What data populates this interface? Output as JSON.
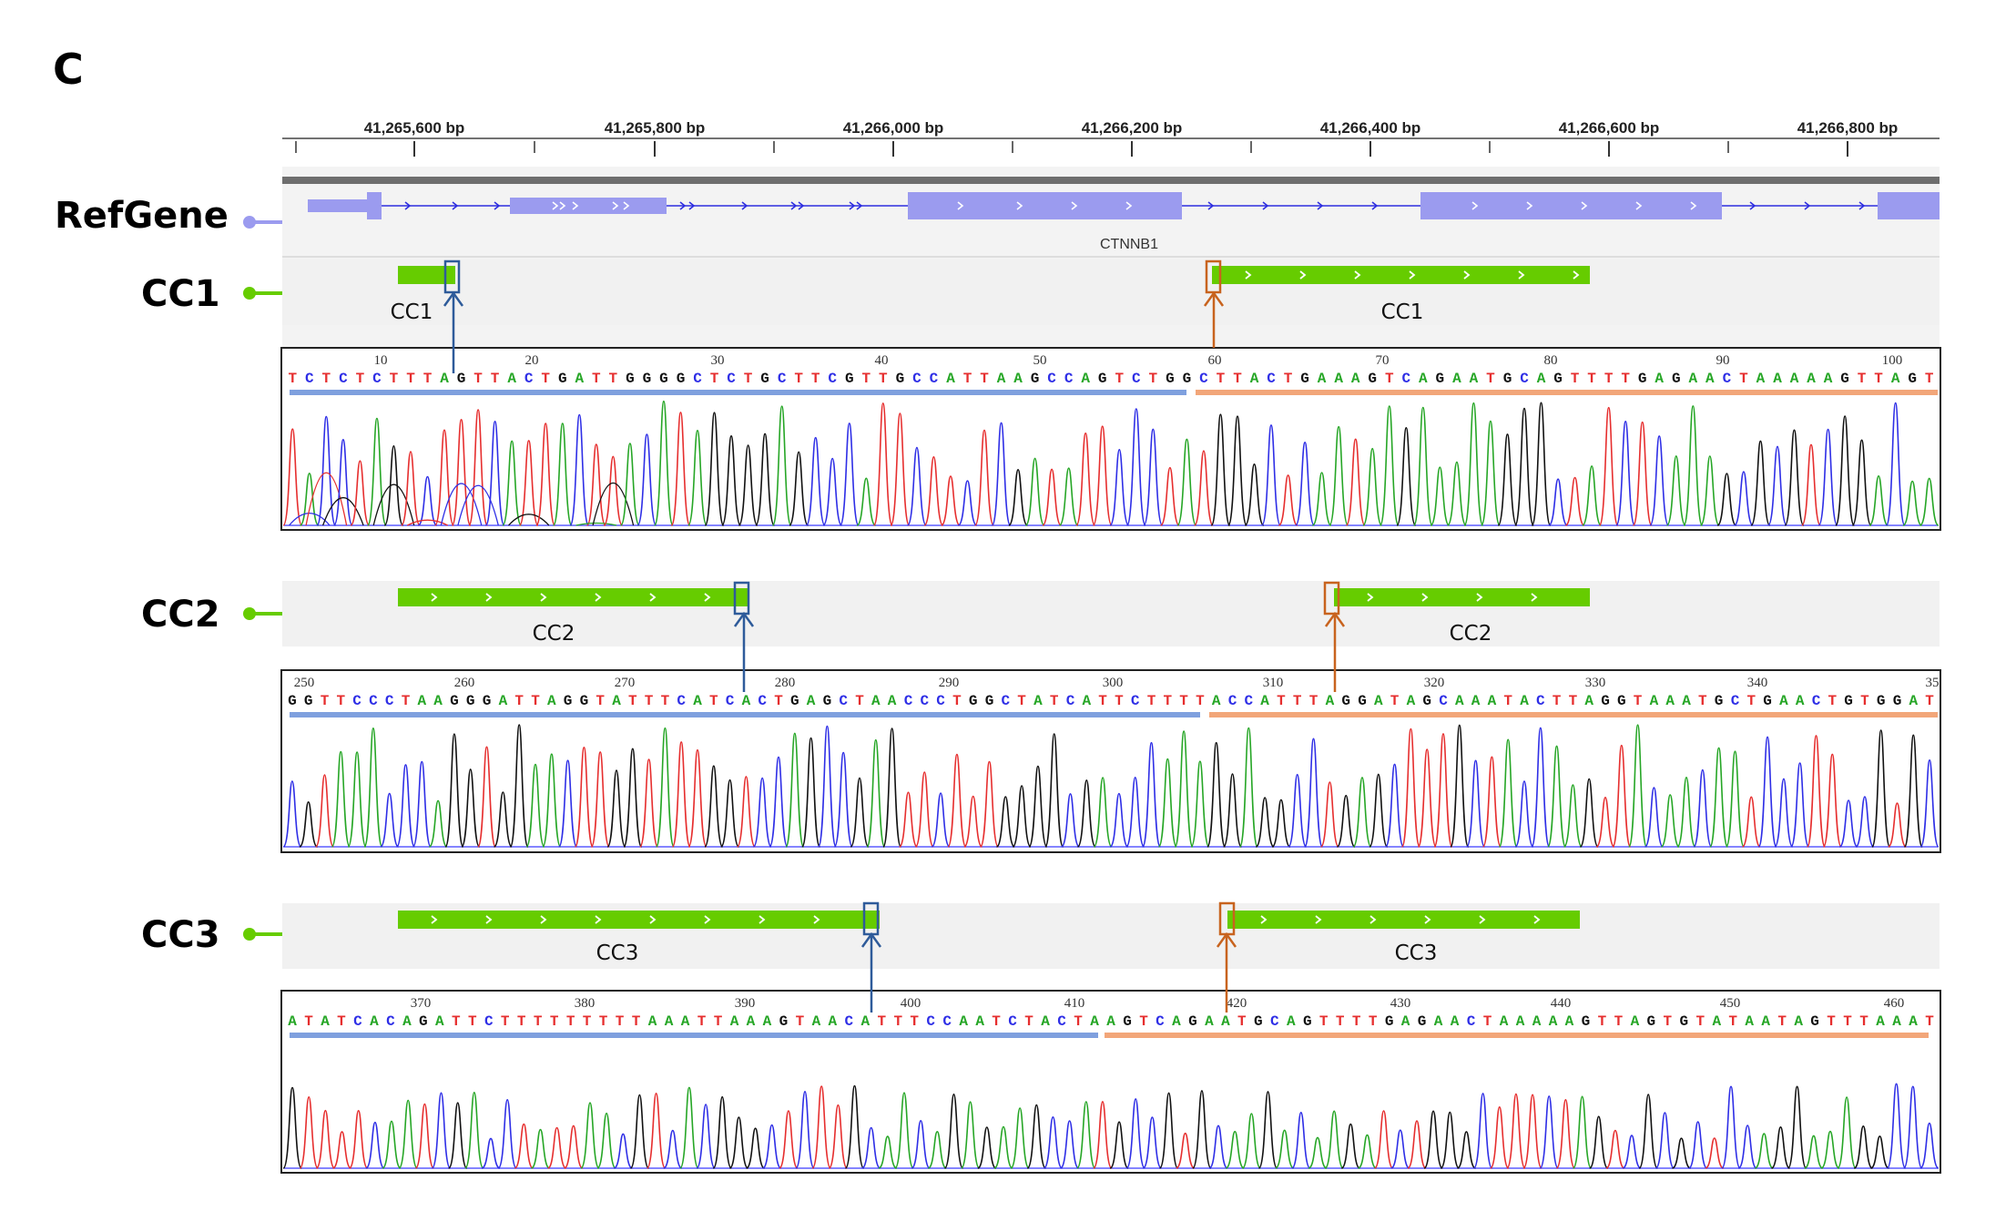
{
  "panel_letter": "C",
  "colors": {
    "refgene": "#9b9bef",
    "refgene_line": "#2e2ee0",
    "feature": "#66cc00",
    "blue_marker": "#2e5b9a",
    "orange_marker": "#c8631e",
    "A": "#26a626",
    "C": "#2e2ee6",
    "G": "#111111",
    "T": "#e62e2e"
  },
  "ruler": {
    "ticks": [
      "41,265,600 bp",
      "41,265,800 bp",
      "41,266,000 bp",
      "41,266,200 bp",
      "41,266,400 bp",
      "41,266,600 bp",
      "41,266,800 bp"
    ]
  },
  "refgene": {
    "label": "RefGene",
    "gene": "CTNNB1"
  },
  "tracks": [
    {
      "label": "CC1",
      "feature_left": "CC1",
      "feature_right": "CC1",
      "positions": [
        "10",
        "20",
        "30",
        "40",
        "50",
        "60",
        "70",
        "80",
        "90",
        "100"
      ],
      "sequence": "TCTCTCTTTAGTTACTGATTGGGGCTCTGCTTCGTTGCCATTAAGCCAGTCTGGCTTACTGAAAGTCAGAATGCAGTTTTGAGAACTAAAAAGTTAGT"
    },
    {
      "label": "CC2",
      "feature_left": "CC2",
      "feature_right": "CC2",
      "positions": [
        "250",
        "260",
        "270",
        "280",
        "290",
        "300",
        "310",
        "320",
        "330",
        "340",
        "35"
      ],
      "sequence": "GGTTCCCTAAGGGATTAGGTATTTCATCACTGAGCTAACCCTGGCTATCATTCTTTTACCATTTAGGATAGCAAATACTTAGGTAAATGCTGAACTGTGGAT"
    },
    {
      "label": "CC3",
      "feature_left": "CC3",
      "feature_right": "CC3",
      "positions": [
        "370",
        "380",
        "390",
        "400",
        "410",
        "420",
        "430",
        "440",
        "450",
        "460"
      ],
      "sequence": "ATATCACAGATTCTTTTTTTTTAAATTAAAGTAACATTTCCAATCTACTAAGTCAGAATGCAGTTTTGAGAACTAAAAAGTTAGTGTATAATAGTTTAAAT"
    }
  ]
}
